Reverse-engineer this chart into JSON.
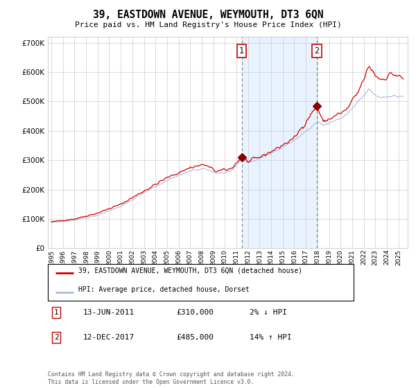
{
  "title": "39, EASTDOWN AVENUE, WEYMOUTH, DT3 6QN",
  "subtitle": "Price paid vs. HM Land Registry's House Price Index (HPI)",
  "ylim": [
    0,
    720000
  ],
  "yticks": [
    0,
    100000,
    200000,
    300000,
    400000,
    500000,
    600000,
    700000
  ],
  "ytick_labels": [
    "£0",
    "£100K",
    "£200K",
    "£300K",
    "£400K",
    "£500K",
    "£600K",
    "£700K"
  ],
  "xlim_start": 1994.7,
  "xlim_end": 2025.8,
  "legend_line1": "39, EASTDOWN AVENUE, WEYMOUTH, DT3 6QN (detached house)",
  "legend_line2": "HPI: Average price, detached house, Dorset",
  "legend_line1_color": "#cc0000",
  "legend_line2_color": "#aabbdd",
  "annotation1_label": "1",
  "annotation1_date": "13-JUN-2011",
  "annotation1_price": "£310,000",
  "annotation1_hpi": "2% ↓ HPI",
  "annotation1_year": 2011.45,
  "annotation1_value": 310000,
  "annotation2_label": "2",
  "annotation2_date": "12-DEC-2017",
  "annotation2_price": "£485,000",
  "annotation2_hpi": "14% ↑ HPI",
  "annotation2_year": 2017.95,
  "annotation2_value": 485000,
  "shaded_color": "#ddeeff",
  "shaded_alpha": 0.65,
  "background_color": "#ffffff",
  "grid_color": "#cccccc",
  "footnote": "Contains HM Land Registry data © Crown copyright and database right 2024.\nThis data is licensed under the Open Government Licence v3.0."
}
